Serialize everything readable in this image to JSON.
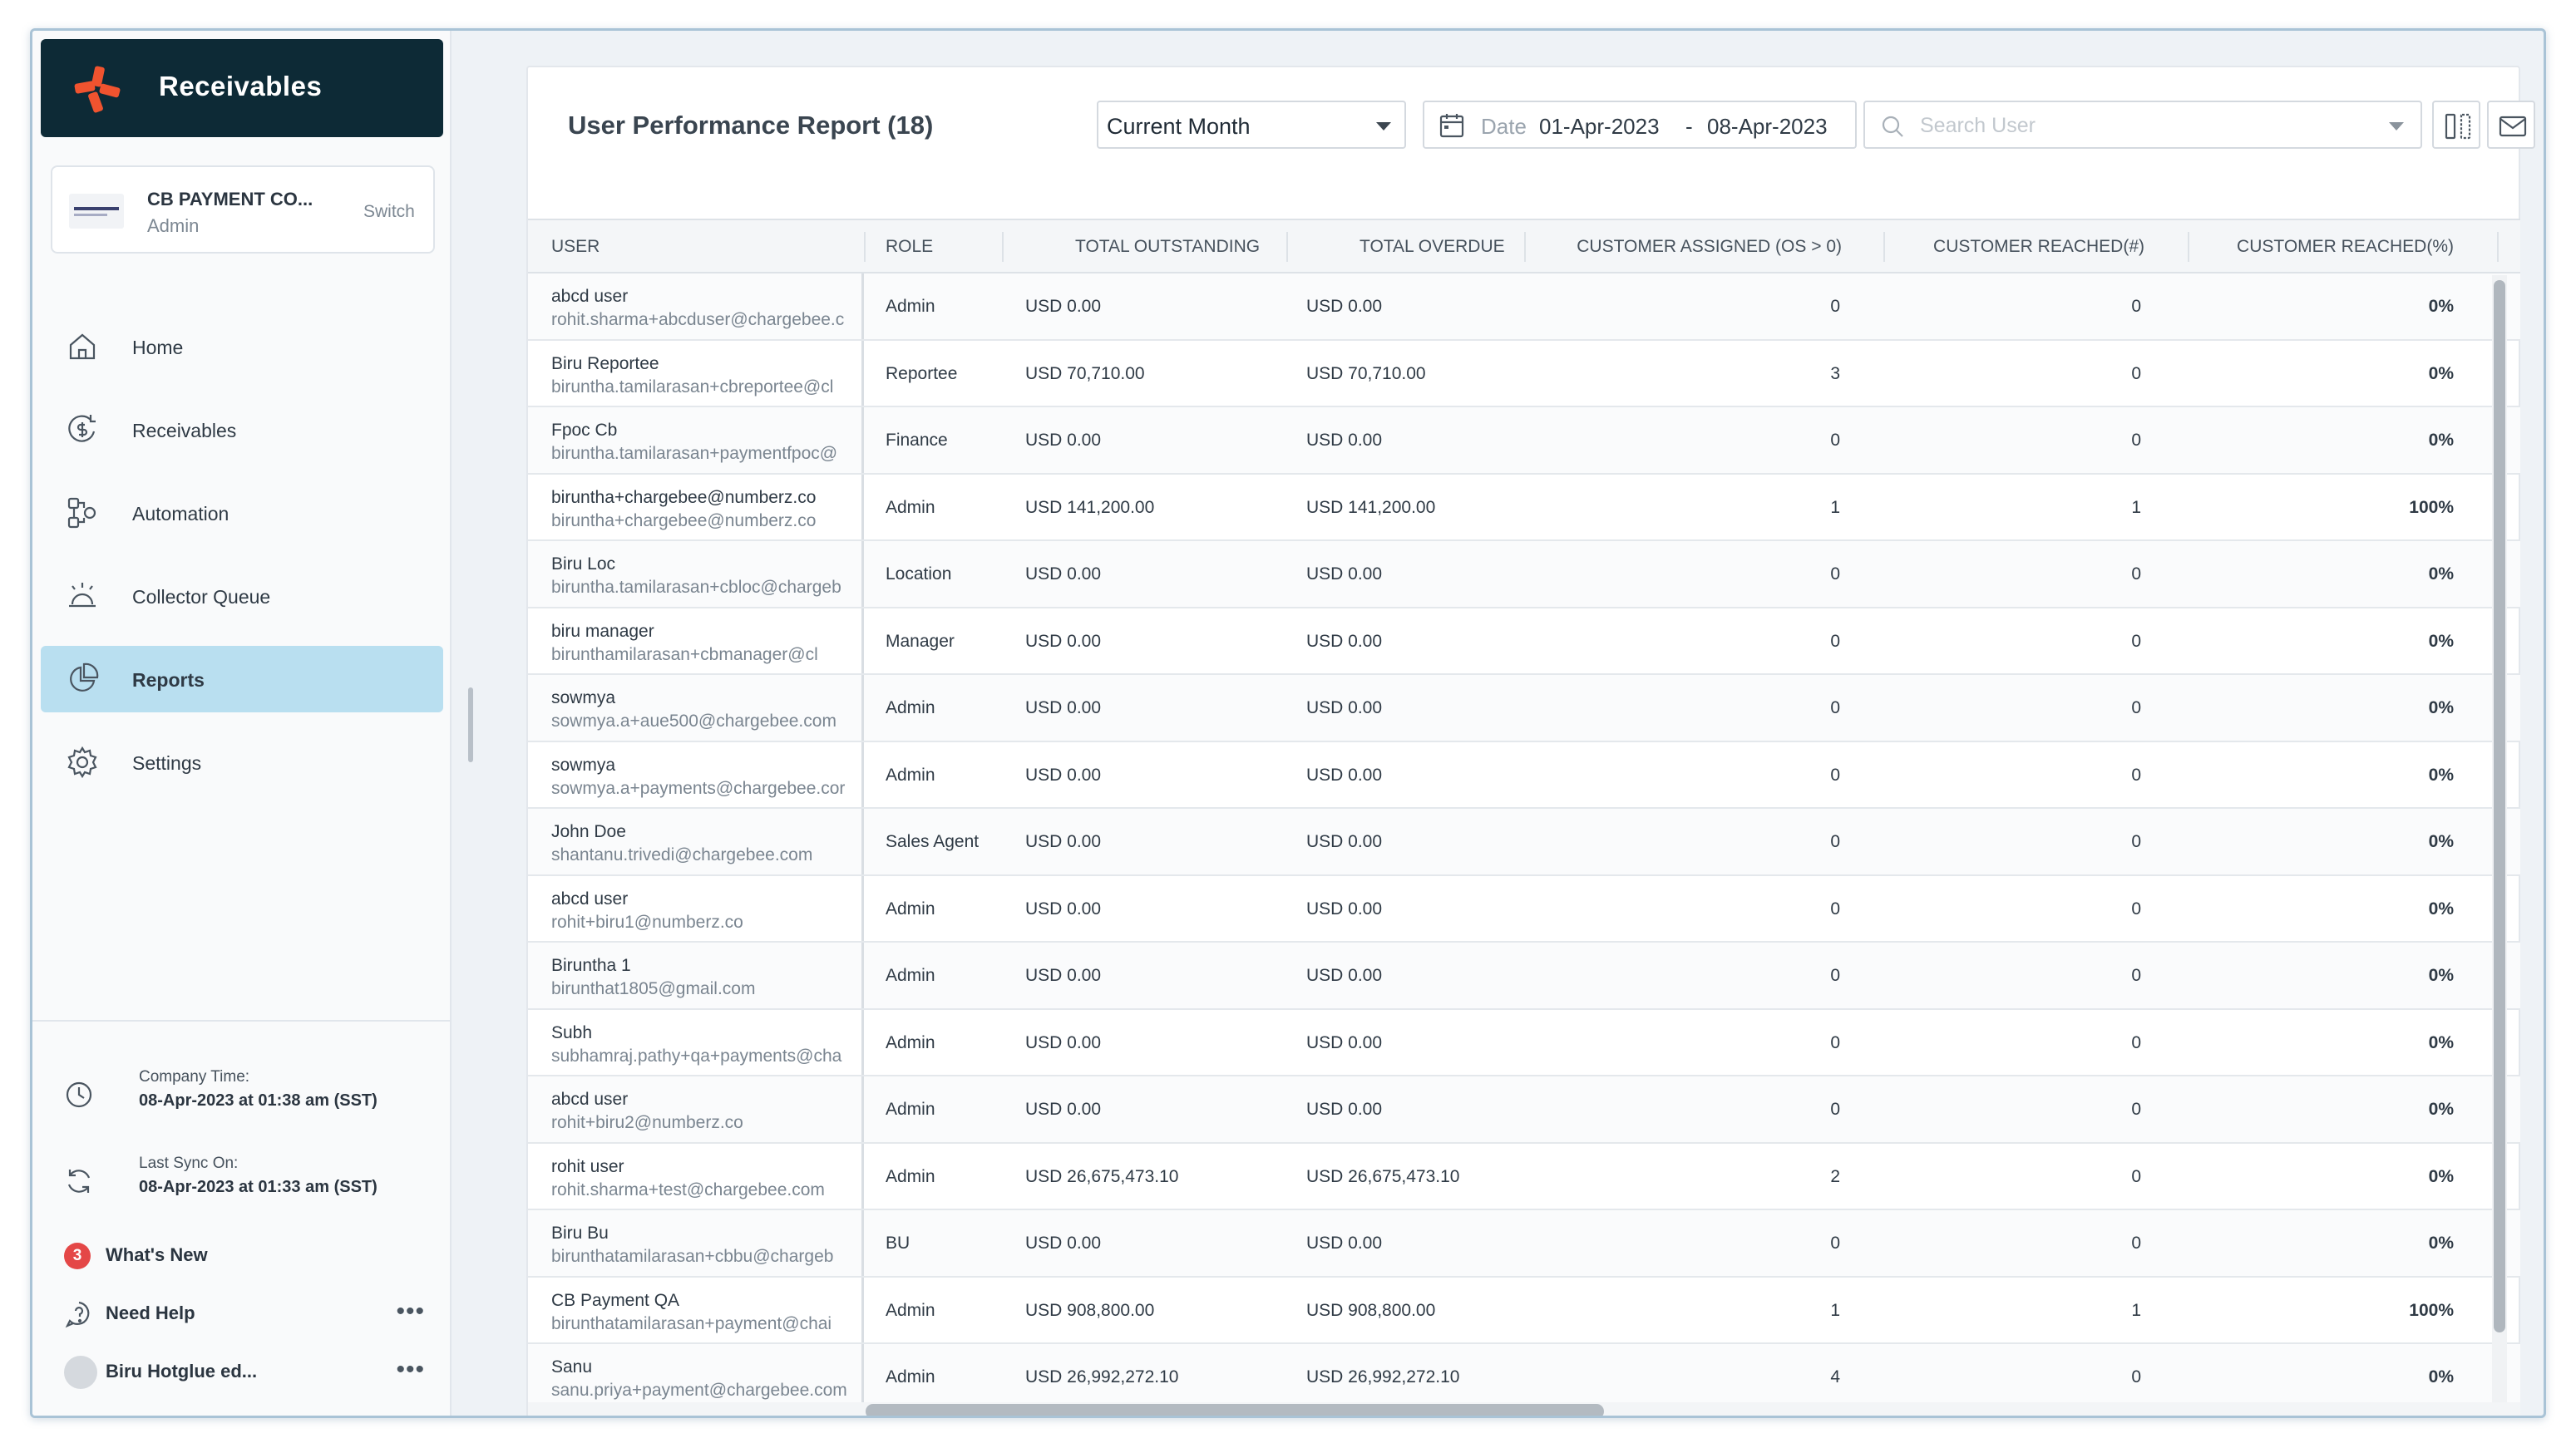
{
  "sidebar": {
    "brand": "Receivables",
    "company": {
      "name": "CB PAYMENT CO...",
      "role": "Admin",
      "switch_label": "Switch"
    },
    "nav": [
      {
        "label": "Home",
        "icon": "home-icon"
      },
      {
        "label": "Receivables",
        "icon": "receivables-icon"
      },
      {
        "label": "Automation",
        "icon": "automation-icon"
      },
      {
        "label": "Collector Queue",
        "icon": "collector-queue-icon"
      },
      {
        "label": "Reports",
        "icon": "reports-icon",
        "active": true
      },
      {
        "label": "Settings",
        "icon": "settings-icon"
      }
    ],
    "company_time": {
      "label": "Company Time:",
      "value": "08-Apr-2023 at 01:38 am (SST)"
    },
    "last_sync": {
      "label": "Last Sync On:",
      "value": "08-Apr-2023 at 01:33 am (SST)"
    },
    "whats_new": {
      "label": "What's New",
      "count": "3"
    },
    "need_help": {
      "label": "Need Help"
    },
    "user": {
      "label": "Biru Hotglue ed..."
    }
  },
  "report": {
    "title": "User Performance Report (18)",
    "period": "Current Month",
    "date_label": "Date",
    "date_from": "01-Apr-2023",
    "date_sep": "-",
    "date_to": "08-Apr-2023",
    "search_placeholder": "Search User"
  },
  "table": {
    "headers": {
      "user": "USER",
      "role": "ROLE",
      "total_outstanding": "TOTAL OUTSTANDING",
      "total_overdue": "TOTAL OVERDUE",
      "customer_assigned": "CUSTOMER ASSIGNED (OS > 0)",
      "customer_reached_count": "CUSTOMER REACHED(#)",
      "customer_reached_pct": "CUSTOMER REACHED(%)"
    },
    "rows": [
      {
        "name": "abcd user",
        "email": "rohit.sharma+abcduser@chargebee.c",
        "role": "Admin",
        "outstanding": "USD 0.00",
        "overdue": "USD 0.00",
        "assigned": "0",
        "reached": "0",
        "pct": "0%"
      },
      {
        "name": "Biru Reportee",
        "email": "biruntha.tamilarasan+cbreportee@cl",
        "role": "Reportee",
        "outstanding": "USD 70,710.00",
        "overdue": "USD 70,710.00",
        "assigned": "3",
        "reached": "0",
        "pct": "0%"
      },
      {
        "name": "Fpoc Cb",
        "email": "biruntha.tamilarasan+paymentfpoc@",
        "role": "Finance",
        "outstanding": "USD 0.00",
        "overdue": "USD 0.00",
        "assigned": "0",
        "reached": "0",
        "pct": "0%"
      },
      {
        "name": "biruntha+chargebee@numberz.co",
        "email": "biruntha+chargebee@numberz.co",
        "role": "Admin",
        "outstanding": "USD 141,200.00",
        "overdue": "USD 141,200.00",
        "assigned": "1",
        "reached": "1",
        "pct": "100%"
      },
      {
        "name": "Biru Loc",
        "email": "biruntha.tamilarasan+cbloc@chargeb",
        "role": "Location",
        "outstanding": "USD 0.00",
        "overdue": "USD 0.00",
        "assigned": "0",
        "reached": "0",
        "pct": "0%"
      },
      {
        "name": "biru manager",
        "email": "birunthamilarasan+cbmanager@cl",
        "role": "Manager",
        "outstanding": "USD 0.00",
        "overdue": "USD 0.00",
        "assigned": "0",
        "reached": "0",
        "pct": "0%"
      },
      {
        "name": "sowmya",
        "email": "sowmya.a+aue500@chargebee.com",
        "role": "Admin",
        "outstanding": "USD 0.00",
        "overdue": "USD 0.00",
        "assigned": "0",
        "reached": "0",
        "pct": "0%"
      },
      {
        "name": "sowmya",
        "email": "sowmya.a+payments@chargebee.cor",
        "role": "Admin",
        "outstanding": "USD 0.00",
        "overdue": "USD 0.00",
        "assigned": "0",
        "reached": "0",
        "pct": "0%"
      },
      {
        "name": "John Doe",
        "email": "shantanu.trivedi@chargebee.com",
        "role": "Sales Agent",
        "outstanding": "USD 0.00",
        "overdue": "USD 0.00",
        "assigned": "0",
        "reached": "0",
        "pct": "0%"
      },
      {
        "name": "abcd user",
        "email": "rohit+biru1@numberz.co",
        "role": "Admin",
        "outstanding": "USD 0.00",
        "overdue": "USD 0.00",
        "assigned": "0",
        "reached": "0",
        "pct": "0%"
      },
      {
        "name": "Biruntha 1",
        "email": "birunthat1805@gmail.com",
        "role": "Admin",
        "outstanding": "USD 0.00",
        "overdue": "USD 0.00",
        "assigned": "0",
        "reached": "0",
        "pct": "0%"
      },
      {
        "name": "Subh",
        "email": "subhamraj.pathy+qa+payments@cha",
        "role": "Admin",
        "outstanding": "USD 0.00",
        "overdue": "USD 0.00",
        "assigned": "0",
        "reached": "0",
        "pct": "0%"
      },
      {
        "name": "abcd user",
        "email": "rohit+biru2@numberz.co",
        "role": "Admin",
        "outstanding": "USD 0.00",
        "overdue": "USD 0.00",
        "assigned": "0",
        "reached": "0",
        "pct": "0%"
      },
      {
        "name": "rohit user",
        "email": "rohit.sharma+test@chargebee.com",
        "role": "Admin",
        "outstanding": "USD 26,675,473.10",
        "overdue": "USD 26,675,473.10",
        "assigned": "2",
        "reached": "0",
        "pct": "0%"
      },
      {
        "name": "Biru Bu",
        "email": "birunthatamilarasan+cbbu@chargeb",
        "role": "BU",
        "outstanding": "USD 0.00",
        "overdue": "USD 0.00",
        "assigned": "0",
        "reached": "0",
        "pct": "0%"
      },
      {
        "name": "CB Payment QA",
        "email": "birunthatamilarasan+payment@chai",
        "role": "Admin",
        "outstanding": "USD 908,800.00",
        "overdue": "USD 908,800.00",
        "assigned": "1",
        "reached": "1",
        "pct": "100%"
      },
      {
        "name": "Sanu",
        "email": "sanu.priya+payment@chargebee.com",
        "role": "Admin",
        "outstanding": "USD 26,992,272.10",
        "overdue": "USD 26,992,272.10",
        "assigned": "4",
        "reached": "0",
        "pct": "0%"
      }
    ]
  },
  "colors": {
    "brand_bg": "#0d2a36",
    "brand_logo": "#f0532f",
    "active_nav": "#b9dff0",
    "badge": "#e44747"
  }
}
